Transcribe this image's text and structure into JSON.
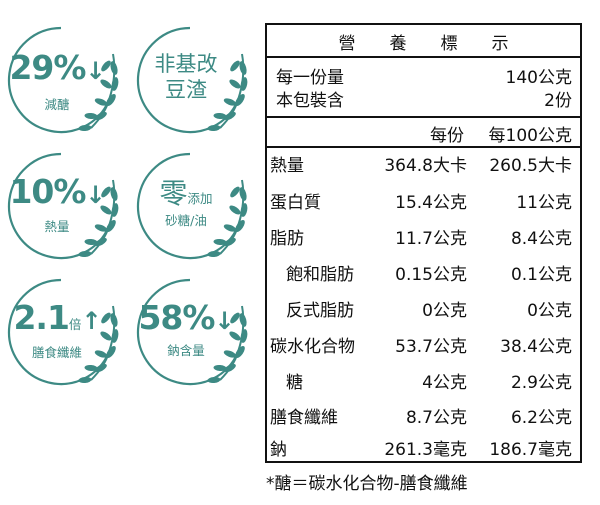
{
  "badges": [
    {
      "big": "29%",
      "arrow": "↓",
      "small": "減醣"
    },
    {
      "line1": "非基改",
      "line2": "豆渣"
    },
    {
      "big": "10%",
      "arrow": "↓",
      "small": "熱量"
    },
    {
      "big_cn": "零",
      "side": "添加",
      "small": "砂糖/油"
    },
    {
      "big": "2.1",
      "side": "倍",
      "arrow": "↑",
      "small": "膳食纖維"
    },
    {
      "big": "58%",
      "arrow": "↓",
      "small": "鈉含量"
    }
  ],
  "nutrition": {
    "title": "營養標示",
    "serving_label": "每一份量",
    "serving_value": "140公克",
    "servings_label": "本包裝含",
    "servings_value": "2份",
    "col_per_serving": "每份",
    "col_per_100g": "每100公克",
    "rows": [
      {
        "label": "熱量",
        "per_serving": "364.8大卡",
        "per_100g": "260.5大卡"
      },
      {
        "label": "蛋白質",
        "per_serving": "15.4公克",
        "per_100g": "11公克"
      },
      {
        "label": "脂肪",
        "per_serving": "11.7公克",
        "per_100g": "8.4公克"
      },
      {
        "label": "飽和脂肪",
        "per_serving": "0.15公克",
        "per_100g": "0.1公克"
      },
      {
        "label": "反式脂肪",
        "per_serving": "0公克",
        "per_100g": "0公克"
      },
      {
        "label": "碳水化合物",
        "per_serving": "53.7公克",
        "per_100g": "38.4公克"
      },
      {
        "label": "糖",
        "per_serving": "4公克",
        "per_100g": "2.9公克"
      },
      {
        "label": "膳食纖維",
        "per_serving": "8.7公克",
        "per_100g": "6.2公克"
      },
      {
        "label": "鈉",
        "per_serving": "261.3毫克",
        "per_100g": "186.7毫克"
      }
    ],
    "footnote": "*醣＝碳水化合物-膳食纖維"
  },
  "colors": {
    "badge": "#3d8a84",
    "leaf": "#3d8a84",
    "ink": "#111111"
  },
  "icons": [
    "laurel-icon",
    "down-arrow-icon",
    "up-arrow-icon"
  ]
}
